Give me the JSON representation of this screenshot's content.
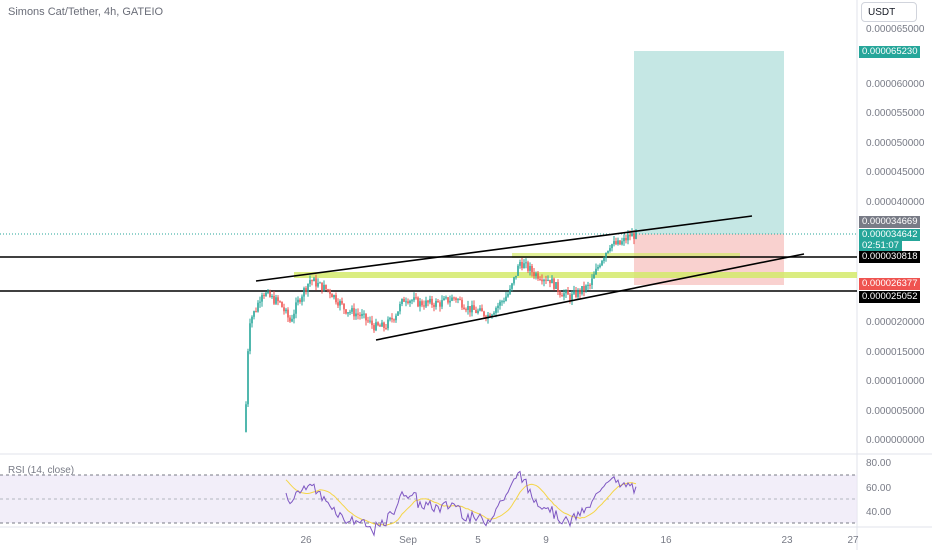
{
  "header": {
    "title": "Simons Cat/Tether, 4h, GATEIO",
    "currency": "USDT"
  },
  "price_axis": {
    "labels": [
      "0.000065000",
      "0.000060000",
      "0.000055000",
      "0.000050000",
      "0.000045000",
      "0.000040000",
      "0.000020000",
      "0.000015000",
      "0.000010000",
      "0.000005000",
      "0.000000000"
    ]
  },
  "price_tags": {
    "target": "0.000065230",
    "top_line": "0.000034669",
    "current": "0.000034642",
    "countdown": "02:51:07",
    "level_high": "0.000030818",
    "stop": "0.000026377",
    "level_low": "0.000025052"
  },
  "time_axis": {
    "labels": [
      "26",
      "Sep",
      "5",
      "9",
      "16",
      "23",
      "27"
    ]
  },
  "rsi": {
    "title": "RSI (14, close)",
    "labels": [
      "80.00",
      "60.00",
      "40.00"
    ]
  },
  "colors": {
    "up": "#26a69a",
    "down": "#ef5350",
    "profit_zone": "#b2dfdb",
    "loss_zone": "#f8c6c3",
    "highlight": "#d4ea6b",
    "rsi_line": "#7e57c2",
    "rsi_ma": "#f5d547",
    "rsi_band": "#ede7f6"
  },
  "chart_data": {
    "type": "candlestick",
    "symbol": "Simons Cat/Tether",
    "interval": "4h",
    "exchange": "GATEIO",
    "quote_currency": "USDT",
    "last_price": 3.4642e-05,
    "target_price": 6.523e-05,
    "stop_price": 2.6377e-05,
    "support_level": 2.5052e-05,
    "resistance_level": 3.0818e-05,
    "ylim": [
      0,
      6.8e-05
    ],
    "rsi": {
      "period": 14,
      "source": "close",
      "levels": [
        80,
        60,
        40
      ]
    }
  }
}
